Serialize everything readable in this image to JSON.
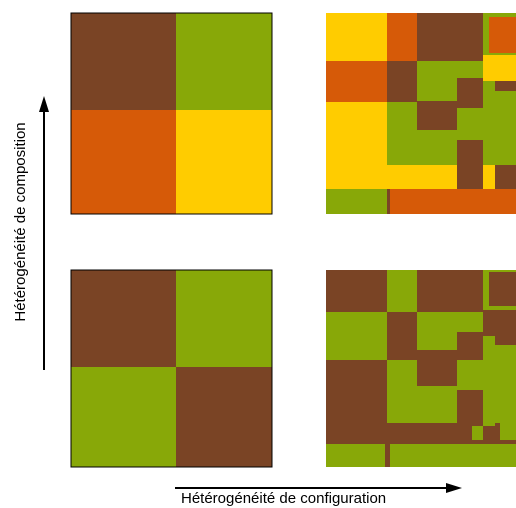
{
  "axes": {
    "x_label": "Hétérogénéité de configuration",
    "y_label": "Hétérogénéité de composition"
  },
  "colors": {
    "brown": "#7a4425",
    "green": "#88a808",
    "orange": "#d65a08",
    "yellow": "#ffcc00"
  },
  "panels": [
    {
      "id": "low-configuration-high-composition"
    },
    {
      "id": "high-configuration-high-composition"
    },
    {
      "id": "low-configuration-low-composition"
    },
    {
      "id": "high-configuration-low-composition"
    }
  ]
}
